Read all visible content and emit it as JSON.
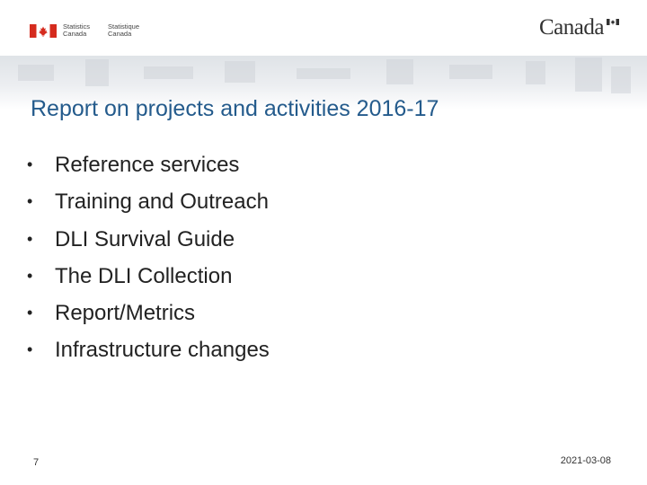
{
  "header": {
    "agency_en_line1": "Statistics",
    "agency_en_line2": "Canada",
    "agency_fr_line1": "Statistique",
    "agency_fr_line2": "Canada",
    "wordmark": "Canada"
  },
  "slide": {
    "title": "Report on projects and activities 2016-17",
    "bullet_symbol": "•",
    "bullets": [
      "Reference services",
      "Training and Outreach",
      "DLI Survival Guide",
      "The DLI Collection",
      "Report/Metrics",
      "Infrastructure changes"
    ]
  },
  "footer": {
    "page_number": "7",
    "date": "2021-03-08"
  },
  "colors": {
    "title": "#245b8c",
    "flag_red": "#d52b1e"
  }
}
